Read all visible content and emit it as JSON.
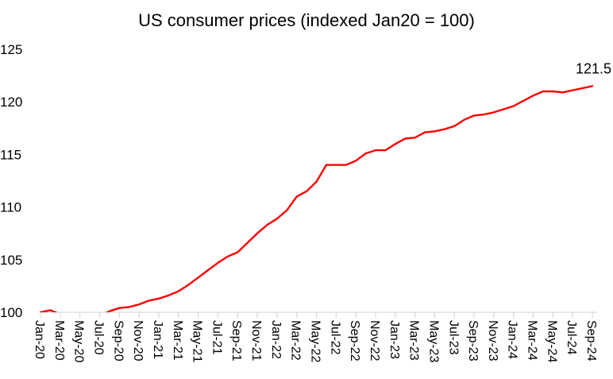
{
  "chart_data": {
    "type": "line",
    "title": "US consumer prices (indexed Jan20 = 100)",
    "xlabel": "",
    "ylabel": "",
    "ylim": [
      100,
      125
    ],
    "yticks": [
      "100",
      "105",
      "110",
      "115",
      "120",
      "125"
    ],
    "ytick_values": [
      100,
      105,
      110,
      115,
      120,
      125
    ],
    "grid": false,
    "legend": "none",
    "line_color": "#ff0000",
    "axis_color": "#d9d9d9",
    "x": [
      "Jan-20",
      "Feb-20",
      "Mar-20",
      "Apr-20",
      "May-20",
      "Jun-20",
      "Jul-20",
      "Aug-20",
      "Sep-20",
      "Oct-20",
      "Nov-20",
      "Dec-20",
      "Jan-21",
      "Feb-21",
      "Mar-21",
      "Apr-21",
      "May-21",
      "Jun-21",
      "Jul-21",
      "Aug-21",
      "Sep-21",
      "Oct-21",
      "Nov-21",
      "Dec-21",
      "Jan-22",
      "Feb-22",
      "Mar-22",
      "Apr-22",
      "May-22",
      "Jun-22",
      "Jul-22",
      "Aug-22",
      "Sep-22",
      "Oct-22",
      "Nov-22",
      "Dec-22",
      "Jan-23",
      "Feb-23",
      "Mar-23",
      "Apr-23",
      "May-23",
      "Jun-23",
      "Jul-23",
      "Aug-23",
      "Sep-23",
      "Oct-23",
      "Nov-23",
      "Dec-23",
      "Jan-24",
      "Feb-24",
      "Mar-24",
      "Apr-24",
      "May-24",
      "Jun-24",
      "Jul-24",
      "Aug-24",
      "Sep-24"
    ],
    "xtick_labels": [
      "Jan-20",
      "Mar-20",
      "May-20",
      "Jul-20",
      "Sep-20",
      "Nov-20",
      "Jan-21",
      "Mar-21",
      "May-21",
      "Jul-21",
      "Sep-21",
      "Nov-21",
      "Jan-22",
      "Mar-22",
      "May-22",
      "Jul-22",
      "Sep-22",
      "Nov-22",
      "Jan-23",
      "Mar-23",
      "May-23",
      "Jul-23",
      "Sep-23",
      "Nov-23",
      "Jan-24",
      "Mar-24",
      "May-24",
      "Jul-24",
      "Sep-24"
    ],
    "series": [
      {
        "name": "US consumer prices",
        "values": [
          100.0,
          100.2,
          99.8,
          99.1,
          98.9,
          99.3,
          99.6,
          100.1,
          100.4,
          100.5,
          100.75,
          101.1,
          101.3,
          101.6,
          102.0,
          102.6,
          103.3,
          104.0,
          104.7,
          105.3,
          105.7,
          106.6,
          107.5,
          108.3,
          108.9,
          109.7,
          111.0,
          111.5,
          112.4,
          114.0,
          114.0,
          114.0,
          114.4,
          115.1,
          115.4,
          115.4,
          116.0,
          116.5,
          116.6,
          117.1,
          117.2,
          117.4,
          117.7,
          118.3,
          118.7,
          118.8,
          119.0,
          119.3,
          119.6,
          120.1,
          120.6,
          121.0,
          121.0,
          120.9,
          121.1,
          121.3,
          121.5
        ]
      }
    ],
    "annotations": [
      {
        "text": "121.5",
        "at": "Sep-24"
      }
    ]
  }
}
